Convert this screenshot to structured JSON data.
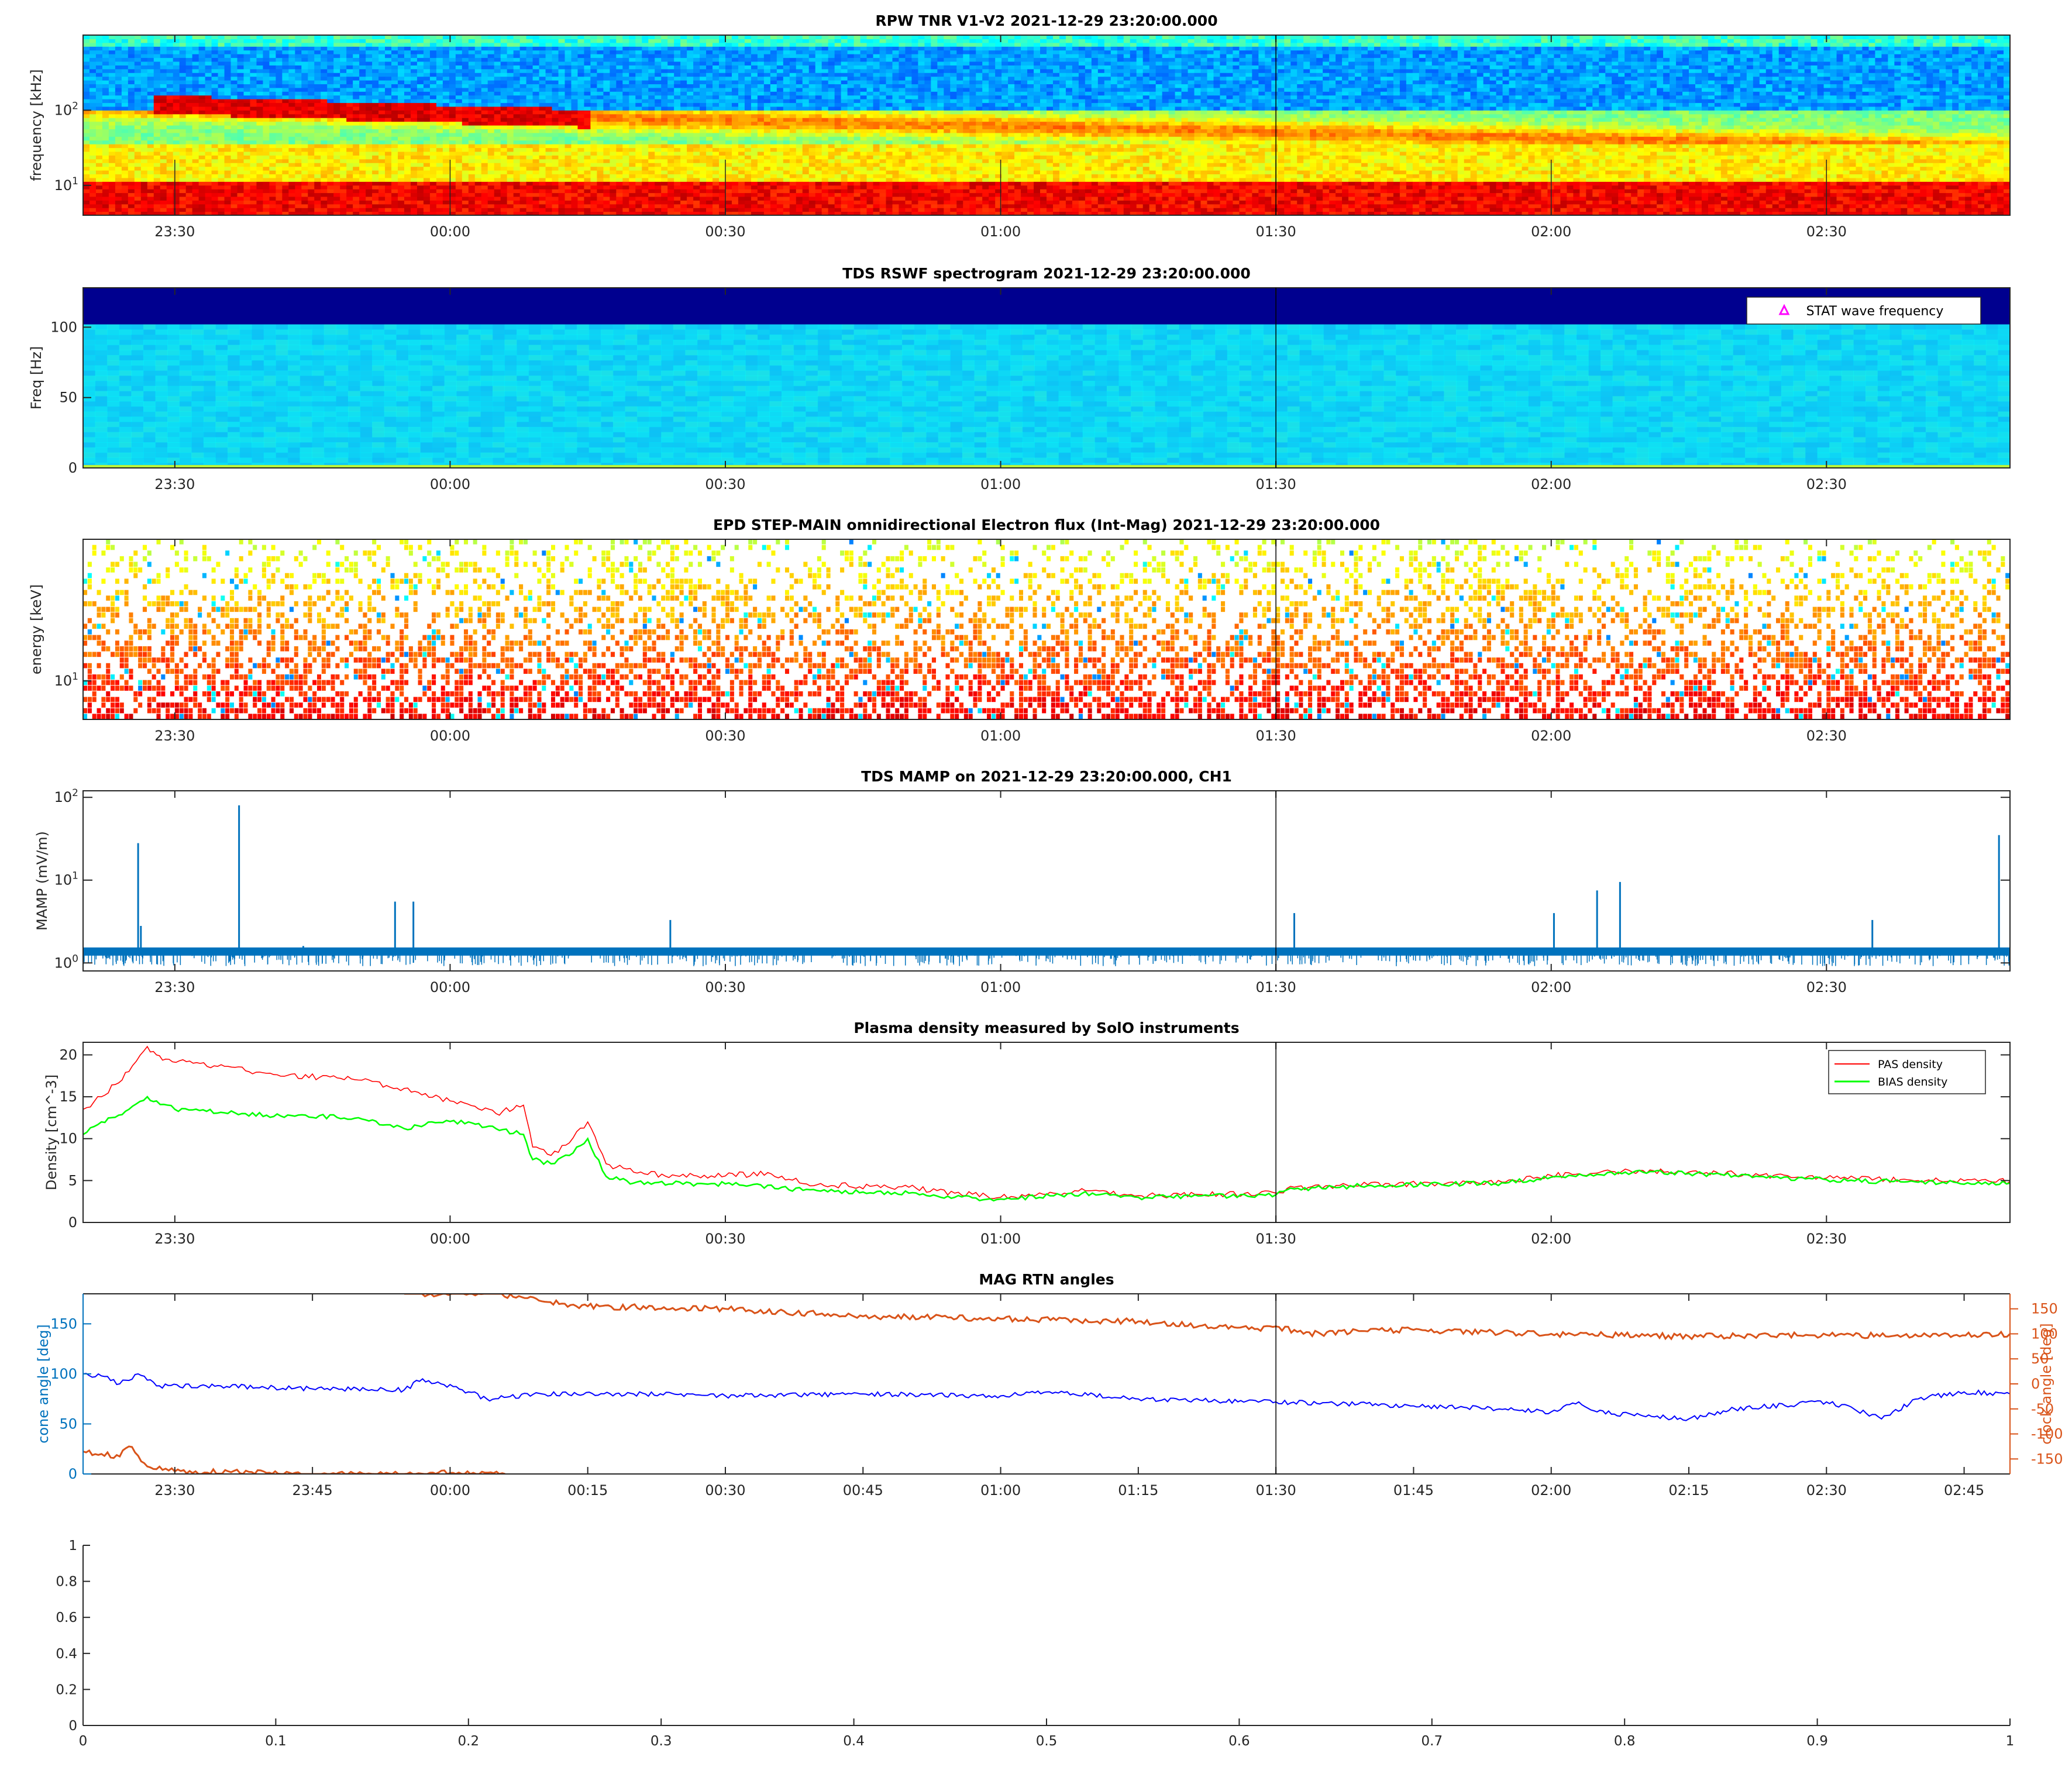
{
  "colors": {
    "jet_low": "#00008f",
    "jet_high": "#8f0000",
    "series_blue": "#0072bd",
    "series_orange": "#d95319",
    "pas_red": "#ff0000",
    "bias_green": "#00ff00",
    "cone_blue": "#0000ff",
    "marker_magenta": "#ff00ff"
  },
  "chart_data": [
    {
      "type": "heatmap",
      "title": "RPW TNR V1-V2 2021-12-29 23:20:00.000",
      "ylabel": "frequency [kHz]",
      "yscale": "log",
      "yticks": [
        "10^2",
        "10^1"
      ],
      "xticks": [
        "23:30",
        "00:00",
        "00:30",
        "01:00",
        "01:30",
        "02:00",
        "02:30"
      ],
      "xlim": [
        "23:20",
        "02:50"
      ],
      "ylim_khz": [
        4,
        1000
      ],
      "colormap": "jet",
      "features": {
        "red_emission_band_khz": 120,
        "red_emission_time": [
          "23:28",
          "00:15"
        ],
        "low_band_khz": 30,
        "blue_band_khz": [
          180,
          700
        ]
      }
    },
    {
      "type": "heatmap",
      "title": "TDS RSWF spectrogram 2021-12-29 23:20:00.000",
      "ylabel": "Freq [Hz]",
      "yticks": [
        0,
        50,
        100
      ],
      "ylim": [
        0,
        128
      ],
      "xticks": [
        "23:30",
        "00:00",
        "00:30",
        "01:00",
        "01:30",
        "02:00",
        "02:30"
      ],
      "colormap": "jet",
      "cutoff_hz": 102,
      "legend": {
        "entries": [
          "STAT wave frequency"
        ],
        "location": "top-right",
        "marker": "triangle"
      }
    },
    {
      "type": "heatmap",
      "title": "EPD STEP-MAIN omnidirectional Electron flux (Int-Mag) 2021-12-29 23:20:00.000",
      "ylabel": "energy [keV]",
      "yscale": "log",
      "yticks": [
        "10^1"
      ],
      "ylim_kev": [
        5.5,
        90
      ],
      "xticks": [
        "23:30",
        "00:00",
        "00:30",
        "01:00",
        "01:30",
        "02:00",
        "02:30"
      ],
      "colormap": "jet",
      "sparse": true
    },
    {
      "type": "line",
      "title": "TDS MAMP on 2021-12-29 23:20:00.000, CH1",
      "ylabel": "MAMP (mV/m)",
      "yscale": "log",
      "yticks": [
        "10^0",
        "10^1",
        "10^2"
      ],
      "ylim": [
        0.8,
        120
      ],
      "xticks": [
        "23:30",
        "00:00",
        "00:30",
        "01:00",
        "01:30",
        "02:00",
        "02:30"
      ],
      "baseline_mv_m": 1.35,
      "spikes": [
        {
          "t": "23:26",
          "v": 28
        },
        {
          "t": "23:26.3",
          "v": 2.8
        },
        {
          "t": "23:37",
          "v": 80
        },
        {
          "t": "23:44",
          "v": 1.6
        },
        {
          "t": "23:54",
          "v": 5.5
        },
        {
          "t": "23:56",
          "v": 5.5
        },
        {
          "t": "00:24",
          "v": 3.3
        },
        {
          "t": "01:32",
          "v": 4.0
        },
        {
          "t": "02:00.3",
          "v": 4.0
        },
        {
          "t": "02:05",
          "v": 7.5
        },
        {
          "t": "02:07.5",
          "v": 9.5
        },
        {
          "t": "02:35",
          "v": 3.3
        },
        {
          "t": "02:48.8",
          "v": 35
        }
      ]
    },
    {
      "type": "line",
      "title": "Plasma density measured by SolO instruments",
      "ylabel": "Density [cm^-3]",
      "ylim": [
        0,
        21.5
      ],
      "yticks": [
        0,
        5,
        10,
        15,
        20
      ],
      "xticks": [
        "23:30",
        "00:00",
        "00:30",
        "01:00",
        "01:30",
        "02:00",
        "02:30"
      ],
      "legend": {
        "location": "top-right"
      },
      "series": [
        {
          "name": "PAS density",
          "points": [
            [
              "23:20",
              13.5
            ],
            [
              "23:22",
              15
            ],
            [
              "23:25",
              18
            ],
            [
              "23:27",
              21
            ],
            [
              "23:28",
              20
            ],
            [
              "23:29",
              19.5
            ],
            [
              "23:32",
              19
            ],
            [
              "23:40",
              17.8
            ],
            [
              "23:50",
              17
            ],
            [
              "23:55",
              16
            ],
            [
              "00:00",
              14.5
            ],
            [
              "00:05",
              13
            ],
            [
              "00:08",
              14
            ],
            [
              "00:09",
              9
            ],
            [
              "00:11",
              8
            ],
            [
              "00:13",
              9.5
            ],
            [
              "00:15",
              12
            ],
            [
              "00:17",
              7
            ],
            [
              "00:20",
              6
            ],
            [
              "00:25",
              5.5
            ],
            [
              "00:35",
              5.8
            ],
            [
              "00:40",
              4.5
            ],
            [
              "00:50",
              4.2
            ],
            [
              "00:55",
              3.5
            ],
            [
              "01:00",
              3
            ],
            [
              "01:10",
              3.8
            ],
            [
              "01:15",
              3.2
            ],
            [
              "01:30",
              3.5
            ],
            [
              "01:32",
              4.2
            ],
            [
              "01:40",
              4.5
            ],
            [
              "01:55",
              4.8
            ],
            [
              "02:00",
              5.6
            ],
            [
              "02:10",
              6.2
            ],
            [
              "02:20",
              5.8
            ],
            [
              "02:30",
              5.3
            ],
            [
              "02:40",
              5
            ],
            [
              "02:50",
              4.9
            ]
          ]
        },
        {
          "name": "BIAS density",
          "points": [
            [
              "23:20",
              10.5
            ],
            [
              "23:22",
              12
            ],
            [
              "23:25",
              13.5
            ],
            [
              "23:27",
              15
            ],
            [
              "23:28",
              14.5
            ],
            [
              "23:30",
              13.5
            ],
            [
              "23:40",
              12.8
            ],
            [
              "23:50",
              12.5
            ],
            [
              "23:55",
              11.2
            ],
            [
              "23:58",
              12
            ],
            [
              "00:02",
              12
            ],
            [
              "00:05",
              11.2
            ],
            [
              "00:08",
              10.5
            ],
            [
              "00:09",
              7.5
            ],
            [
              "00:11",
              7
            ],
            [
              "00:13",
              8
            ],
            [
              "00:15",
              10
            ],
            [
              "00:17",
              5.5
            ],
            [
              "00:20",
              4.7
            ],
            [
              "00:30",
              4.6
            ],
            [
              "00:40",
              3.8
            ],
            [
              "00:50",
              3.5
            ],
            [
              "00:55",
              3
            ],
            [
              "01:00",
              2.8
            ],
            [
              "01:10",
              3.5
            ],
            [
              "01:15",
              3
            ],
            [
              "01:30",
              3.3
            ],
            [
              "01:32",
              4
            ],
            [
              "01:40",
              4.4
            ],
            [
              "01:55",
              4.7
            ],
            [
              "02:00",
              5.4
            ],
            [
              "02:10",
              6
            ],
            [
              "02:20",
              5.6
            ],
            [
              "02:30",
              5.1
            ],
            [
              "02:40",
              4.8
            ],
            [
              "02:50",
              4.7
            ]
          ]
        }
      ]
    },
    {
      "type": "line",
      "title": "MAG RTN angles",
      "ylabel_left": "cone angle [deg]",
      "ylabel_right": "clock angle [deg]",
      "ylim_left": [
        0,
        180
      ],
      "yticks_left": [
        0,
        50,
        100,
        150
      ],
      "ylim_right": [
        -180,
        180
      ],
      "yticks_right": [
        150,
        100,
        50,
        0,
        -50,
        -100,
        -150
      ],
      "xticks": [
        "23:30",
        "23:45",
        "00:00",
        "00:15",
        "00:30",
        "00:45",
        "01:00",
        "01:15",
        "01:30",
        "01:45",
        "02:00",
        "02:15",
        "02:30",
        "02:45"
      ],
      "series": [
        {
          "name": "cone",
          "axis": "left",
          "points": [
            [
              "23:20",
              100
            ],
            [
              "23:22",
              98
            ],
            [
              "23:24",
              90
            ],
            [
              "23:26",
              100
            ],
            [
              "23:28",
              88
            ],
            [
              "23:35",
              88
            ],
            [
              "23:45",
              85
            ],
            [
              "23:55",
              84
            ],
            [
              "23:57",
              95
            ],
            [
              "23:59",
              90
            ],
            [
              "00:02",
              82
            ],
            [
              "00:04",
              75
            ],
            [
              "00:10",
              80
            ],
            [
              "00:20",
              80
            ],
            [
              "00:30",
              78
            ],
            [
              "00:45",
              80
            ],
            [
              "01:00",
              78
            ],
            [
              "01:05",
              82
            ],
            [
              "01:15",
              75
            ],
            [
              "01:30",
              72
            ],
            [
              "01:45",
              68
            ],
            [
              "01:55",
              65
            ],
            [
              "02:00",
              62
            ],
            [
              "02:03",
              72
            ],
            [
              "02:05",
              62
            ],
            [
              "02:10",
              58
            ],
            [
              "02:15",
              55
            ],
            [
              "02:20",
              65
            ],
            [
              "02:30",
              72
            ],
            [
              "02:33",
              65
            ],
            [
              "02:36",
              55
            ],
            [
              "02:40",
              75
            ],
            [
              "02:45",
              82
            ],
            [
              "02:50",
              80
            ]
          ]
        },
        {
          "name": "clock",
          "axis": "right",
          "points": [
            [
              "23:20",
              -135
            ],
            [
              "23:22",
              -140
            ],
            [
              "23:24",
              -145
            ],
            [
              "23:25",
              -125
            ],
            [
              "23:27",
              -165
            ],
            [
              "23:30",
              -175
            ],
            [
              "23:40",
              -178
            ],
            [
              "23:45",
              -180
            ],
            [
              "23:55",
              -180
            ],
            [
              "00:00",
              -178
            ],
            [
              "00:06",
              -180
            ],
            null,
            [
              "23:55",
              180
            ],
            [
              "00:05",
              180
            ],
            [
              "00:10",
              165
            ],
            [
              "00:15",
              155
            ],
            [
              "00:30",
              150
            ],
            [
              "00:45",
              135
            ],
            [
              "01:00",
              130
            ],
            [
              "01:15",
              125
            ],
            [
              "01:28",
              110
            ],
            [
              "01:30",
              115
            ],
            [
              "01:33",
              100
            ],
            [
              "01:40",
              105
            ],
            [
              "01:45",
              108
            ],
            [
              "02:00",
              100
            ],
            [
              "02:15",
              95
            ],
            [
              "02:30",
              98
            ],
            [
              "02:40",
              95
            ],
            [
              "02:50",
              100
            ]
          ]
        }
      ]
    },
    {
      "type": "line",
      "title": "",
      "xlim": [
        0,
        1
      ],
      "ylim": [
        0,
        1
      ],
      "xticks": [
        0,
        0.1,
        0.2,
        0.3,
        0.4,
        0.5,
        0.6,
        0.7,
        0.8,
        0.9,
        1
      ],
      "yticks": [
        0,
        0.2,
        0.4,
        0.6,
        0.8,
        1
      ],
      "series": []
    }
  ]
}
